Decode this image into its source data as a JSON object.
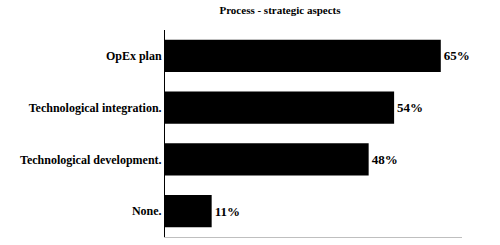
{
  "chart_data": {
    "type": "bar",
    "title": "Process - strategic aspects",
    "orientation": "horizontal",
    "categories": [
      "OpEx plan",
      "Technological integration.",
      "Technological development.",
      "None."
    ],
    "values": [
      65,
      54,
      48,
      11
    ],
    "value_labels": [
      "65%",
      "54%",
      "48%",
      "11%"
    ],
    "data_labels": true,
    "color": "#000000",
    "xlim": [
      0,
      70
    ],
    "tick_labels": "y",
    "grid": false
  }
}
